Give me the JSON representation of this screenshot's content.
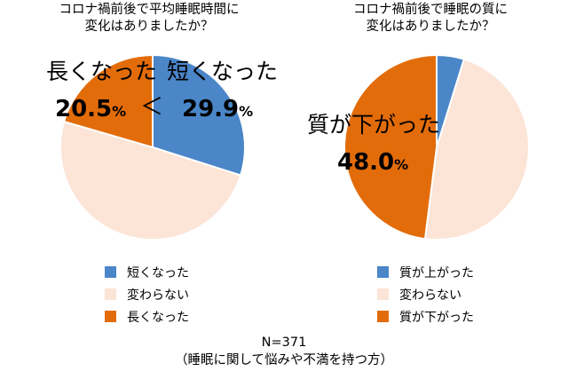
{
  "chart_data": [
    {
      "type": "pie",
      "title": "コロナ禍前後で平均睡眠時間に\n変化はありましたか？",
      "categories": [
        "短くなった",
        "変わらない",
        "長くなった"
      ],
      "values": [
        29.9,
        49.6,
        20.5
      ],
      "colors": [
        "#4A86C8",
        "#FCE4D6",
        "#E36C0A"
      ],
      "annotations": {
        "left_label": "長くなった",
        "left_value": "20.5",
        "comparison": "＜",
        "right_label": "短くなった",
        "right_value": "29.9",
        "unit": "%"
      },
      "legend": [
        "短くなった",
        "変わらない",
        "長くなった"
      ]
    },
    {
      "type": "pie",
      "title": "コロナ禍前後で睡眠の質に\n変化はありましたか？",
      "categories": [
        "質が上がった",
        "変わらない",
        "質が下がった"
      ],
      "values": [
        4.8,
        47.2,
        48.0
      ],
      "colors": [
        "#4A86C8",
        "#FCE4D6",
        "#E36C0A"
      ],
      "annotations": {
        "label": "質が下がった",
        "value": "48.0",
        "unit": "%"
      },
      "legend": [
        "質が上がった",
        "変わらない",
        "質が下がった"
      ]
    }
  ],
  "footer": {
    "n": "N=371",
    "note": "（睡眠に関して悩みや不満を持つ方）"
  }
}
